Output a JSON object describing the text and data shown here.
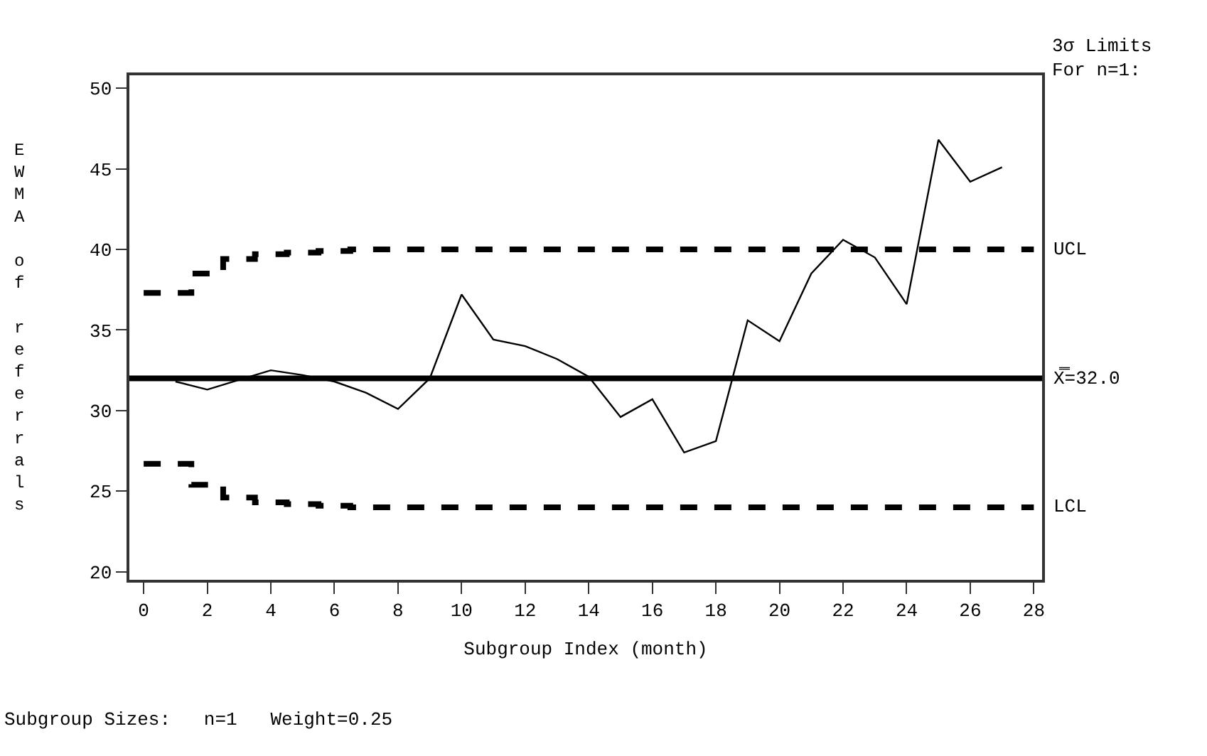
{
  "chart_data": {
    "type": "line",
    "xlabel": "Subgroup Index (month)",
    "ylabel": "EWMA of referrals",
    "xlim": [
      -0.45,
      28.26
    ],
    "ylim": [
      19.5,
      50.8
    ],
    "xticks": [
      0,
      2,
      4,
      6,
      8,
      10,
      12,
      14,
      16,
      18,
      20,
      22,
      24,
      26,
      28
    ],
    "yticks": [
      20,
      25,
      30,
      35,
      40,
      45,
      50
    ],
    "legend": false,
    "marker": "none",
    "series": [
      {
        "color": "#000000",
        "line_style": "solid",
        "x": [
          1,
          2,
          3,
          4,
          5,
          6,
          7,
          8,
          9,
          10,
          11,
          12,
          13,
          14,
          15,
          16,
          17,
          18,
          19,
          20,
          21,
          22,
          23,
          24,
          25,
          26,
          27
        ],
        "values": [
          31.8,
          31.3,
          31.9,
          32.5,
          32.2,
          31.8,
          31.1,
          30.1,
          32.0,
          37.2,
          34.4,
          34.0,
          33.2,
          32.1,
          29.6,
          30.7,
          27.4,
          28.1,
          35.6,
          34.3,
          38.5,
          40.6,
          39.5,
          36.6,
          46.8,
          44.2,
          45.1
        ]
      },
      {
        "type": "step",
        "name": "UCL",
        "color": "#000000",
        "line_style": "dashed",
        "x": [
          0,
          1,
          2,
          3,
          4,
          5,
          6,
          7,
          8,
          9,
          10,
          11,
          12,
          13,
          14,
          15,
          16,
          17,
          18,
          19,
          20,
          21,
          22,
          23,
          24,
          25,
          26,
          27,
          28
        ],
        "values": [
          37.3,
          37.3,
          38.5,
          39.4,
          39.7,
          39.8,
          39.9,
          40.0,
          40.0,
          40.0,
          40.0,
          40.0,
          40.0,
          40.0,
          40.0,
          40.0,
          40.0,
          40.0,
          40.0,
          40.0,
          40.0,
          40.0,
          40.0,
          40.0,
          40.0,
          40.0,
          40.0,
          40.0,
          40.0
        ]
      },
      {
        "type": "step",
        "name": "LCL",
        "color": "#000000",
        "line_style": "dashed",
        "x": [
          0,
          1,
          2,
          3,
          4,
          5,
          6,
          7,
          8,
          9,
          10,
          11,
          12,
          13,
          14,
          15,
          16,
          17,
          18,
          19,
          20,
          21,
          22,
          23,
          24,
          25,
          26,
          27,
          28
        ],
        "values": [
          26.7,
          26.7,
          25.4,
          24.6,
          24.3,
          24.2,
          24.1,
          24.0,
          24.0,
          24.0,
          24.0,
          24.0,
          24.0,
          24.0,
          24.0,
          24.0,
          24.0,
          24.0,
          24.0,
          24.0,
          24.0,
          24.0,
          24.0,
          24.0,
          24.0,
          24.0,
          24.0,
          24.0,
          24.0
        ]
      }
    ],
    "ref_lines": [
      {
        "axis": "y",
        "value": 32.0,
        "label": "X̿=32.0",
        "color": "#000000",
        "line_style": "solid"
      }
    ],
    "annotations": [
      "3σ Limits\nFor n=1:",
      "Subgroup Sizes:   n=1   Weight=0.25"
    ]
  }
}
